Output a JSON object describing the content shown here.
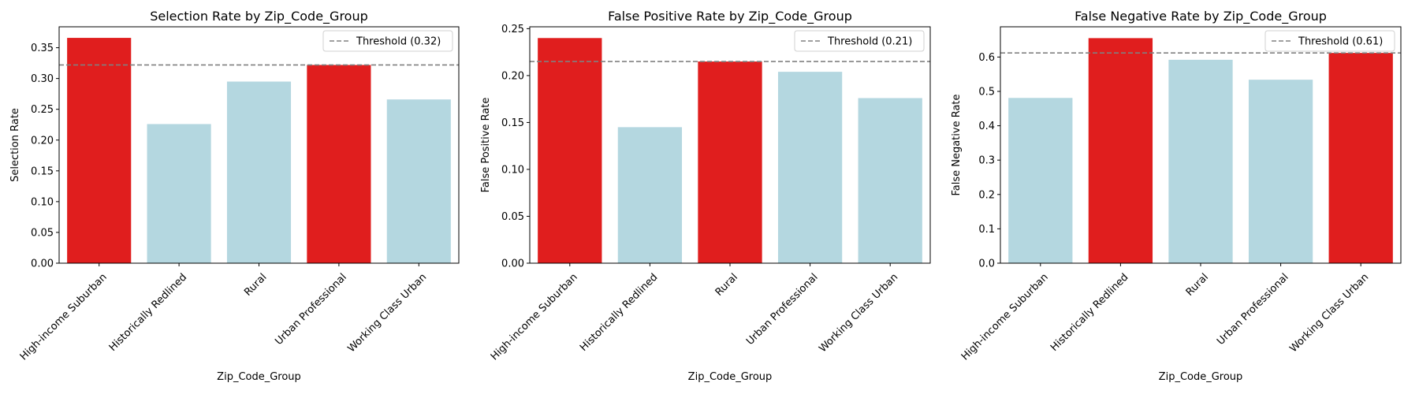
{
  "colors": {
    "highlight": "#e01e1e",
    "normal": "#b4d7e0",
    "threshold": "#808080",
    "axis": "#000000"
  },
  "chart_data": [
    {
      "type": "bar",
      "title": "Selection Rate by Zip_Code_Group",
      "xlabel": "Zip_Code_Group",
      "ylabel": "Selection Rate",
      "categories": [
        "High-income Suburban",
        "Historically Redlined",
        "Rural",
        "Urban Professional",
        "Working Class Urban"
      ],
      "values": [
        0.366,
        0.226,
        0.295,
        0.322,
        0.266
      ],
      "highlighted": [
        true,
        false,
        false,
        true,
        false
      ],
      "threshold": 0.322,
      "threshold_label": "Threshold (0.32)",
      "ylim": [
        0,
        0.384
      ],
      "yticks": [
        0.0,
        0.05,
        0.1,
        0.15,
        0.2,
        0.25,
        0.3,
        0.35
      ],
      "ytick_labels": [
        "0.00",
        "0.05",
        "0.10",
        "0.15",
        "0.20",
        "0.25",
        "0.30",
        "0.35"
      ],
      "legend_position": "top-right",
      "grid": false
    },
    {
      "type": "bar",
      "title": "False Positive Rate by Zip_Code_Group",
      "xlabel": "Zip_Code_Group",
      "ylabel": "False Positive Rate",
      "categories": [
        "High-income Suburban",
        "Historically Redlined",
        "Rural",
        "Urban Professional",
        "Working Class Urban"
      ],
      "values": [
        0.24,
        0.145,
        0.215,
        0.204,
        0.176
      ],
      "highlighted": [
        true,
        false,
        true,
        false,
        false
      ],
      "threshold": 0.215,
      "threshold_label": "Threshold (0.21)",
      "ylim": [
        0,
        0.252
      ],
      "yticks": [
        0.0,
        0.05,
        0.1,
        0.15,
        0.2,
        0.25
      ],
      "ytick_labels": [
        "0.00",
        "0.05",
        "0.10",
        "0.15",
        "0.20",
        "0.25"
      ],
      "legend_position": "top-right",
      "grid": false
    },
    {
      "type": "bar",
      "title": "False Negative Rate by Zip_Code_Group",
      "xlabel": "Zip_Code_Group",
      "ylabel": "False Negative Rate",
      "categories": [
        "High-income Suburban",
        "Historically Redlined",
        "Rural",
        "Urban Professional",
        "Working Class Urban"
      ],
      "values": [
        0.481,
        0.655,
        0.592,
        0.534,
        0.612
      ],
      "highlighted": [
        false,
        true,
        false,
        false,
        true
      ],
      "threshold": 0.612,
      "threshold_label": "Threshold (0.61)",
      "ylim": [
        0,
        0.688
      ],
      "yticks": [
        0.0,
        0.1,
        0.2,
        0.3,
        0.4,
        0.5,
        0.6
      ],
      "ytick_labels": [
        "0.0",
        "0.1",
        "0.2",
        "0.3",
        "0.4",
        "0.5",
        "0.6"
      ],
      "legend_position": "top-right",
      "grid": false
    }
  ]
}
